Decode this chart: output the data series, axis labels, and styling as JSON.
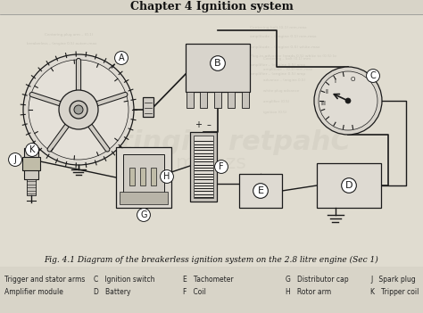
{
  "title": "Chapter 4 Ignition system",
  "fig_caption": "Fig. 4.1 Diagram of the breakerless ignition system on the 2.8 litre engine (Sec 1)",
  "legend_row1": [
    "Trigger and stator arms",
    "C   Ignition switch",
    "E   Tachometer",
    "G   Distributor cap",
    "J   Spark plug"
  ],
  "legend_row2": [
    "Amplifier module",
    "D   Battery",
    "F   Coil",
    "H   Rotor arm",
    "K   Tripper coil"
  ],
  "bg_color": "#d8d4c8",
  "page_color": "#e2dfd4",
  "line_color": "#1a1a1a",
  "title_color": "#111111",
  "ghost_color": "#b8b4a8",
  "bleed_color": "#c0bcb0"
}
